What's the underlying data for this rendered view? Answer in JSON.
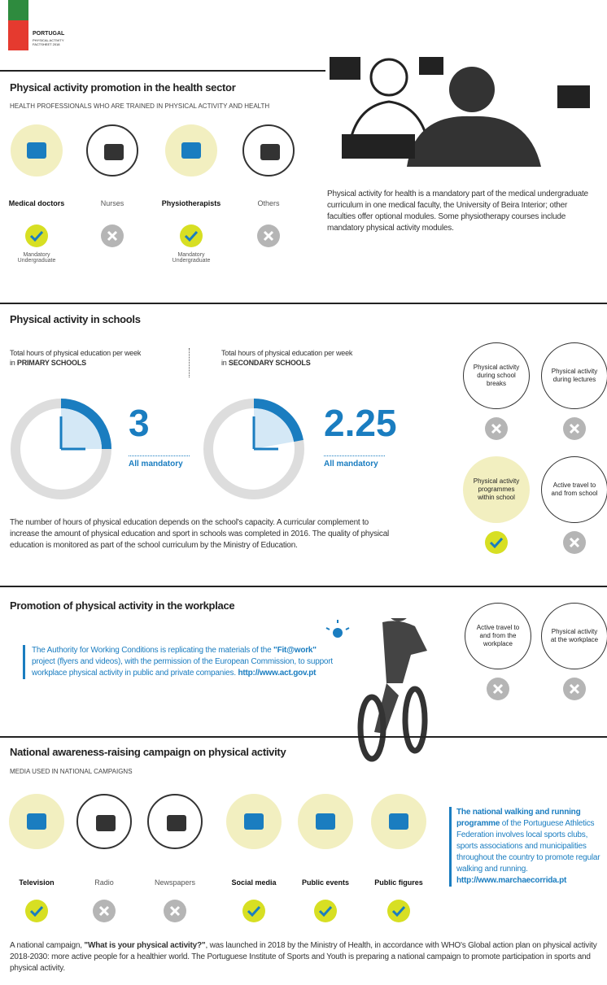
{
  "header": {
    "country": "PORTUGAL",
    "subtitle": "PHYSICAL ACTIVITY FACTSHEET 2018"
  },
  "health": {
    "title": "Physical activity promotion in the health sector",
    "subtitle": "HEALTH PROFESSIONALS WHO ARE TRAINED IN PHYSICAL ACTIVITY AND HEALTH",
    "professions": [
      {
        "name": "Medical doctors",
        "trained": true,
        "note": "Mandatory Undergraduate"
      },
      {
        "name": "Nurses",
        "trained": false
      },
      {
        "name": "Physiotherapists",
        "trained": true,
        "note": "Mandatory Undergraduate"
      },
      {
        "name": "Others",
        "trained": false
      }
    ],
    "text": "Physical activity for health is a mandatory part of the medical undergraduate curriculum in one medical faculty, the University of Beira Interior; other faculties offer optional modules. Some physiotherapy courses include mandatory physical activity modules."
  },
  "schools": {
    "title": "Physical activity in schools",
    "hours": [
      {
        "label": "Total hours of physical education per week in ",
        "level": "PRIMARY SCHOOLS",
        "value": "3",
        "note": "All mandatory"
      },
      {
        "label": "Total hours of physical education per week in ",
        "level": "SECONDARY SCHOOLS",
        "value": "2.25",
        "note": "All mandatory"
      }
    ],
    "text": "The number of hours of physical education depends on the school's capacity. A curricular complement to increase the amount of physical education and sport in schools was completed in 2016. The quality of physical education is monitored as part of the school curriculum by the Ministry of Education.",
    "items": [
      {
        "name": "Physical activity during school breaks",
        "present": false
      },
      {
        "name": "Physical activity during lectures",
        "present": false
      },
      {
        "name": "Physical activity programmes within school",
        "present": true
      },
      {
        "name": "Active travel to and from school",
        "present": false
      }
    ]
  },
  "workplace": {
    "title": "Promotion of physical activity in the workplace",
    "text": [
      "The Authority for Working Conditions is replicating the materials of the ",
      "\"Fit@work\"",
      " project (flyers and videos), with the permission of the European Commission, to support workplace physical activity in public and private companies. ",
      "http://www.act.gov.pt"
    ],
    "items": [
      {
        "name": "Active travel to and from the workplace",
        "present": false
      },
      {
        "name": "Physical activity at the workplace",
        "present": false
      }
    ]
  },
  "campaign": {
    "title": "National awareness-raising campaign on physical activity",
    "subtitle": "MEDIA USED IN NATIONAL CAMPAIGNS",
    "media": [
      {
        "name": "Television",
        "used": true
      },
      {
        "name": "Radio",
        "used": false
      },
      {
        "name": "Newspapers",
        "used": false
      },
      {
        "name": "Social media",
        "used": true
      },
      {
        "name": "Public events",
        "used": true
      },
      {
        "name": "Public figures",
        "used": true
      }
    ],
    "note": [
      "The national walking and running programme",
      " of the Portuguese Athletics Federation involves local sports clubs, sports associations and municipalities throughout the country to promote regular walking and running. ",
      "http://www.marchaecorrida.pt"
    ],
    "text": [
      "A national campaign, ",
      "\"What is your physical activity?\"",
      ", was launched in 2018 by the Ministry of Health, in accordance with WHO's Global action plan on physical activity 2018-2030: more active people for a healthier world. The Portuguese Institute of Sports and Youth is preparing a national campaign to promote participation in sports and physical activity."
    ]
  }
}
